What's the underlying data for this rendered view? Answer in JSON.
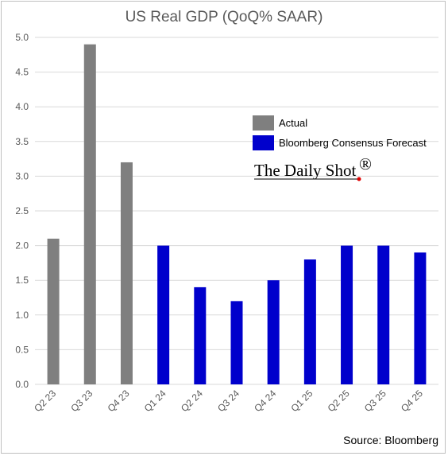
{
  "chart_data": {
    "type": "bar",
    "title": "US Real GDP (QoQ% SAAR)",
    "categories": [
      "Q2 23",
      "Q3 23",
      "Q4 23",
      "Q1 24",
      "Q2 24",
      "Q3 24",
      "Q4 24",
      "Q1 25",
      "Q2 25",
      "Q3 25",
      "Q4 25"
    ],
    "series": [
      {
        "name": "Actual",
        "color": "#7f7f7f",
        "values": [
          2.1,
          4.9,
          3.2,
          null,
          null,
          null,
          null,
          null,
          null,
          null,
          null
        ]
      },
      {
        "name": "Bloomberg Consensus Forecast",
        "color": "#0000cc",
        "values": [
          null,
          null,
          null,
          2.0,
          1.4,
          1.2,
          1.5,
          1.8,
          2.0,
          2.0,
          1.9
        ]
      }
    ],
    "ylim": [
      0,
      5.0
    ],
    "yticks": [
      "0.0",
      "0.5",
      "1.0",
      "1.5",
      "2.0",
      "2.5",
      "3.0",
      "3.5",
      "4.0",
      "4.5",
      "5.0"
    ],
    "grid": true,
    "legend_position": "top-right"
  },
  "watermark": {
    "text": "The Daily Shot",
    "mark": "®"
  },
  "source_text": "Source: Bloomberg"
}
